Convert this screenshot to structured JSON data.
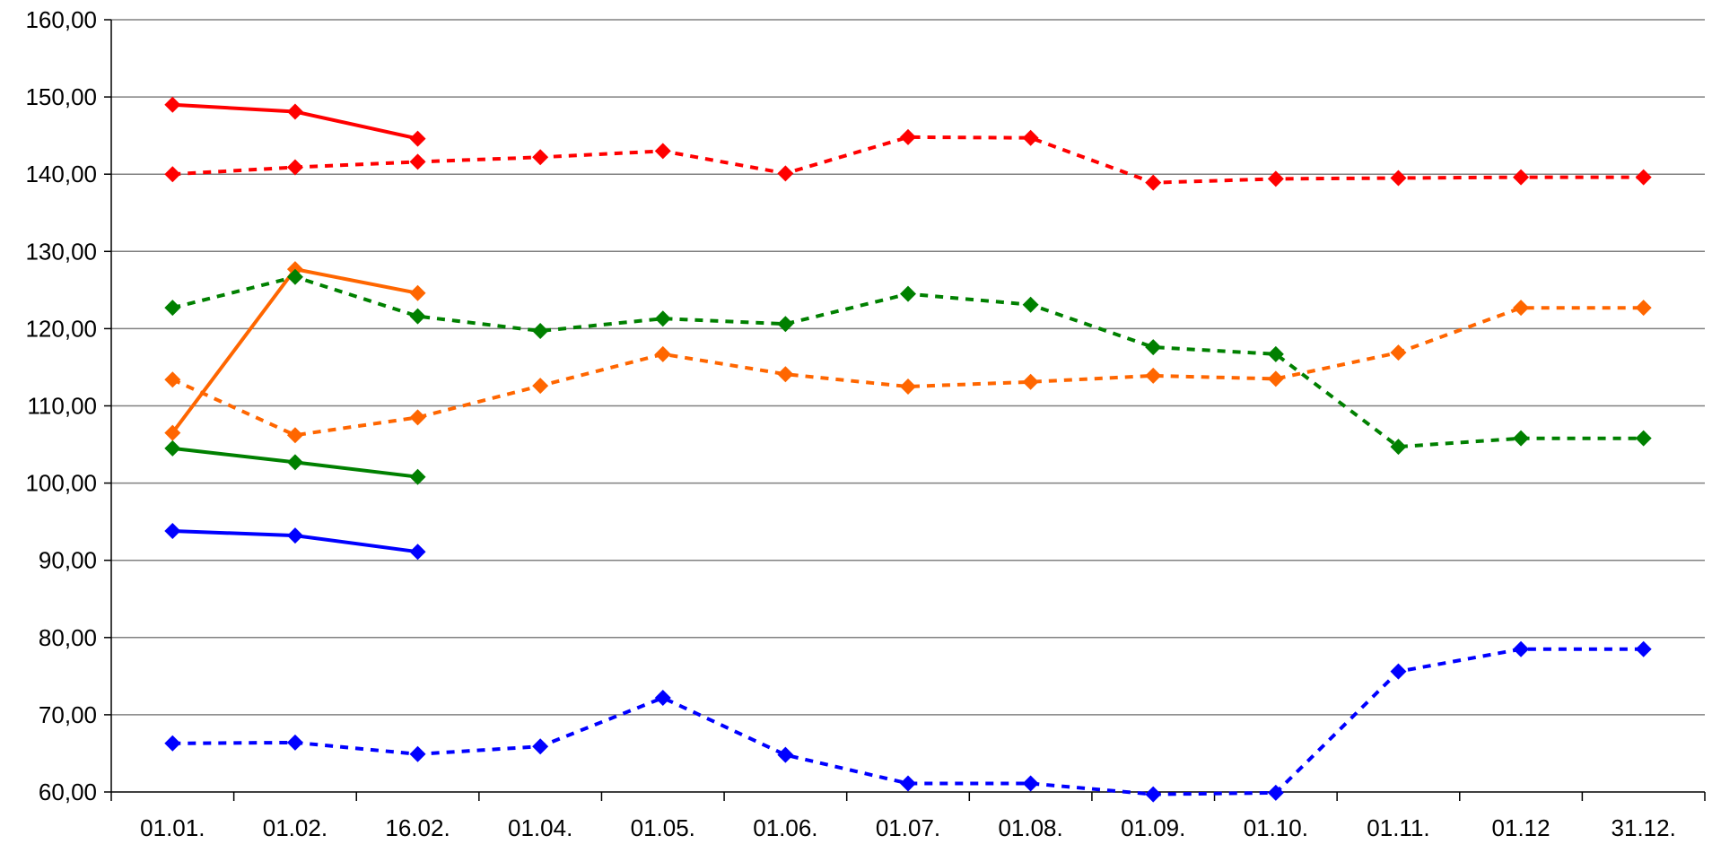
{
  "chart_data": {
    "type": "line",
    "categories": [
      "01.01.",
      "01.02.",
      "16.02.",
      "01.04.",
      "01.05.",
      "01.06.",
      "01.07.",
      "01.08.",
      "01.09.",
      "01.10.",
      "01.11.",
      "01.12",
      "31.12."
    ],
    "ylim": [
      60,
      160
    ],
    "y_ticks": [
      "60,00",
      "70,00",
      "80,00",
      "90,00",
      "100,00",
      "110,00",
      "120,00",
      "130,00",
      "140,00",
      "150,00",
      "160,00"
    ],
    "grid": true,
    "legend": "none",
    "series": [
      {
        "color": "#ff0000",
        "style": "solid",
        "values": [
          149.0,
          148.1,
          144.6,
          null,
          null,
          null,
          null,
          null,
          null,
          null,
          null,
          null,
          null
        ]
      },
      {
        "color": "#ff0000",
        "style": "dashed",
        "values": [
          140.0,
          140.9,
          141.6,
          142.2,
          143.0,
          140.1,
          144.8,
          144.7,
          138.9,
          139.4,
          139.5,
          139.6,
          139.6
        ]
      },
      {
        "color": "#ff6600",
        "style": "solid",
        "values": [
          106.5,
          127.7,
          124.6,
          null,
          null,
          null,
          null,
          null,
          null,
          null,
          null,
          null,
          null
        ]
      },
      {
        "color": "#ff6600",
        "style": "dashed",
        "values": [
          113.4,
          106.2,
          108.5,
          112.6,
          116.7,
          114.1,
          112.5,
          113.1,
          113.9,
          113.5,
          116.9,
          122.7,
          122.7
        ]
      },
      {
        "color": "#008000",
        "style": "solid",
        "values": [
          104.5,
          102.7,
          100.8,
          null,
          null,
          null,
          null,
          null,
          null,
          null,
          null,
          null,
          null
        ]
      },
      {
        "color": "#008000",
        "style": "dashed",
        "values": [
          122.7,
          126.7,
          121.6,
          119.7,
          121.3,
          120.6,
          124.5,
          123.1,
          117.6,
          116.7,
          104.7,
          105.8,
          105.8
        ]
      },
      {
        "color": "#0000ff",
        "style": "solid",
        "values": [
          93.8,
          93.2,
          91.1,
          null,
          null,
          null,
          null,
          null,
          null,
          null,
          null,
          null,
          null
        ]
      },
      {
        "color": "#0000ff",
        "style": "dashed",
        "values": [
          66.3,
          66.4,
          64.9,
          65.9,
          72.2,
          64.8,
          61.1,
          61.1,
          59.7,
          59.9,
          75.6,
          78.5,
          78.5
        ]
      }
    ]
  }
}
